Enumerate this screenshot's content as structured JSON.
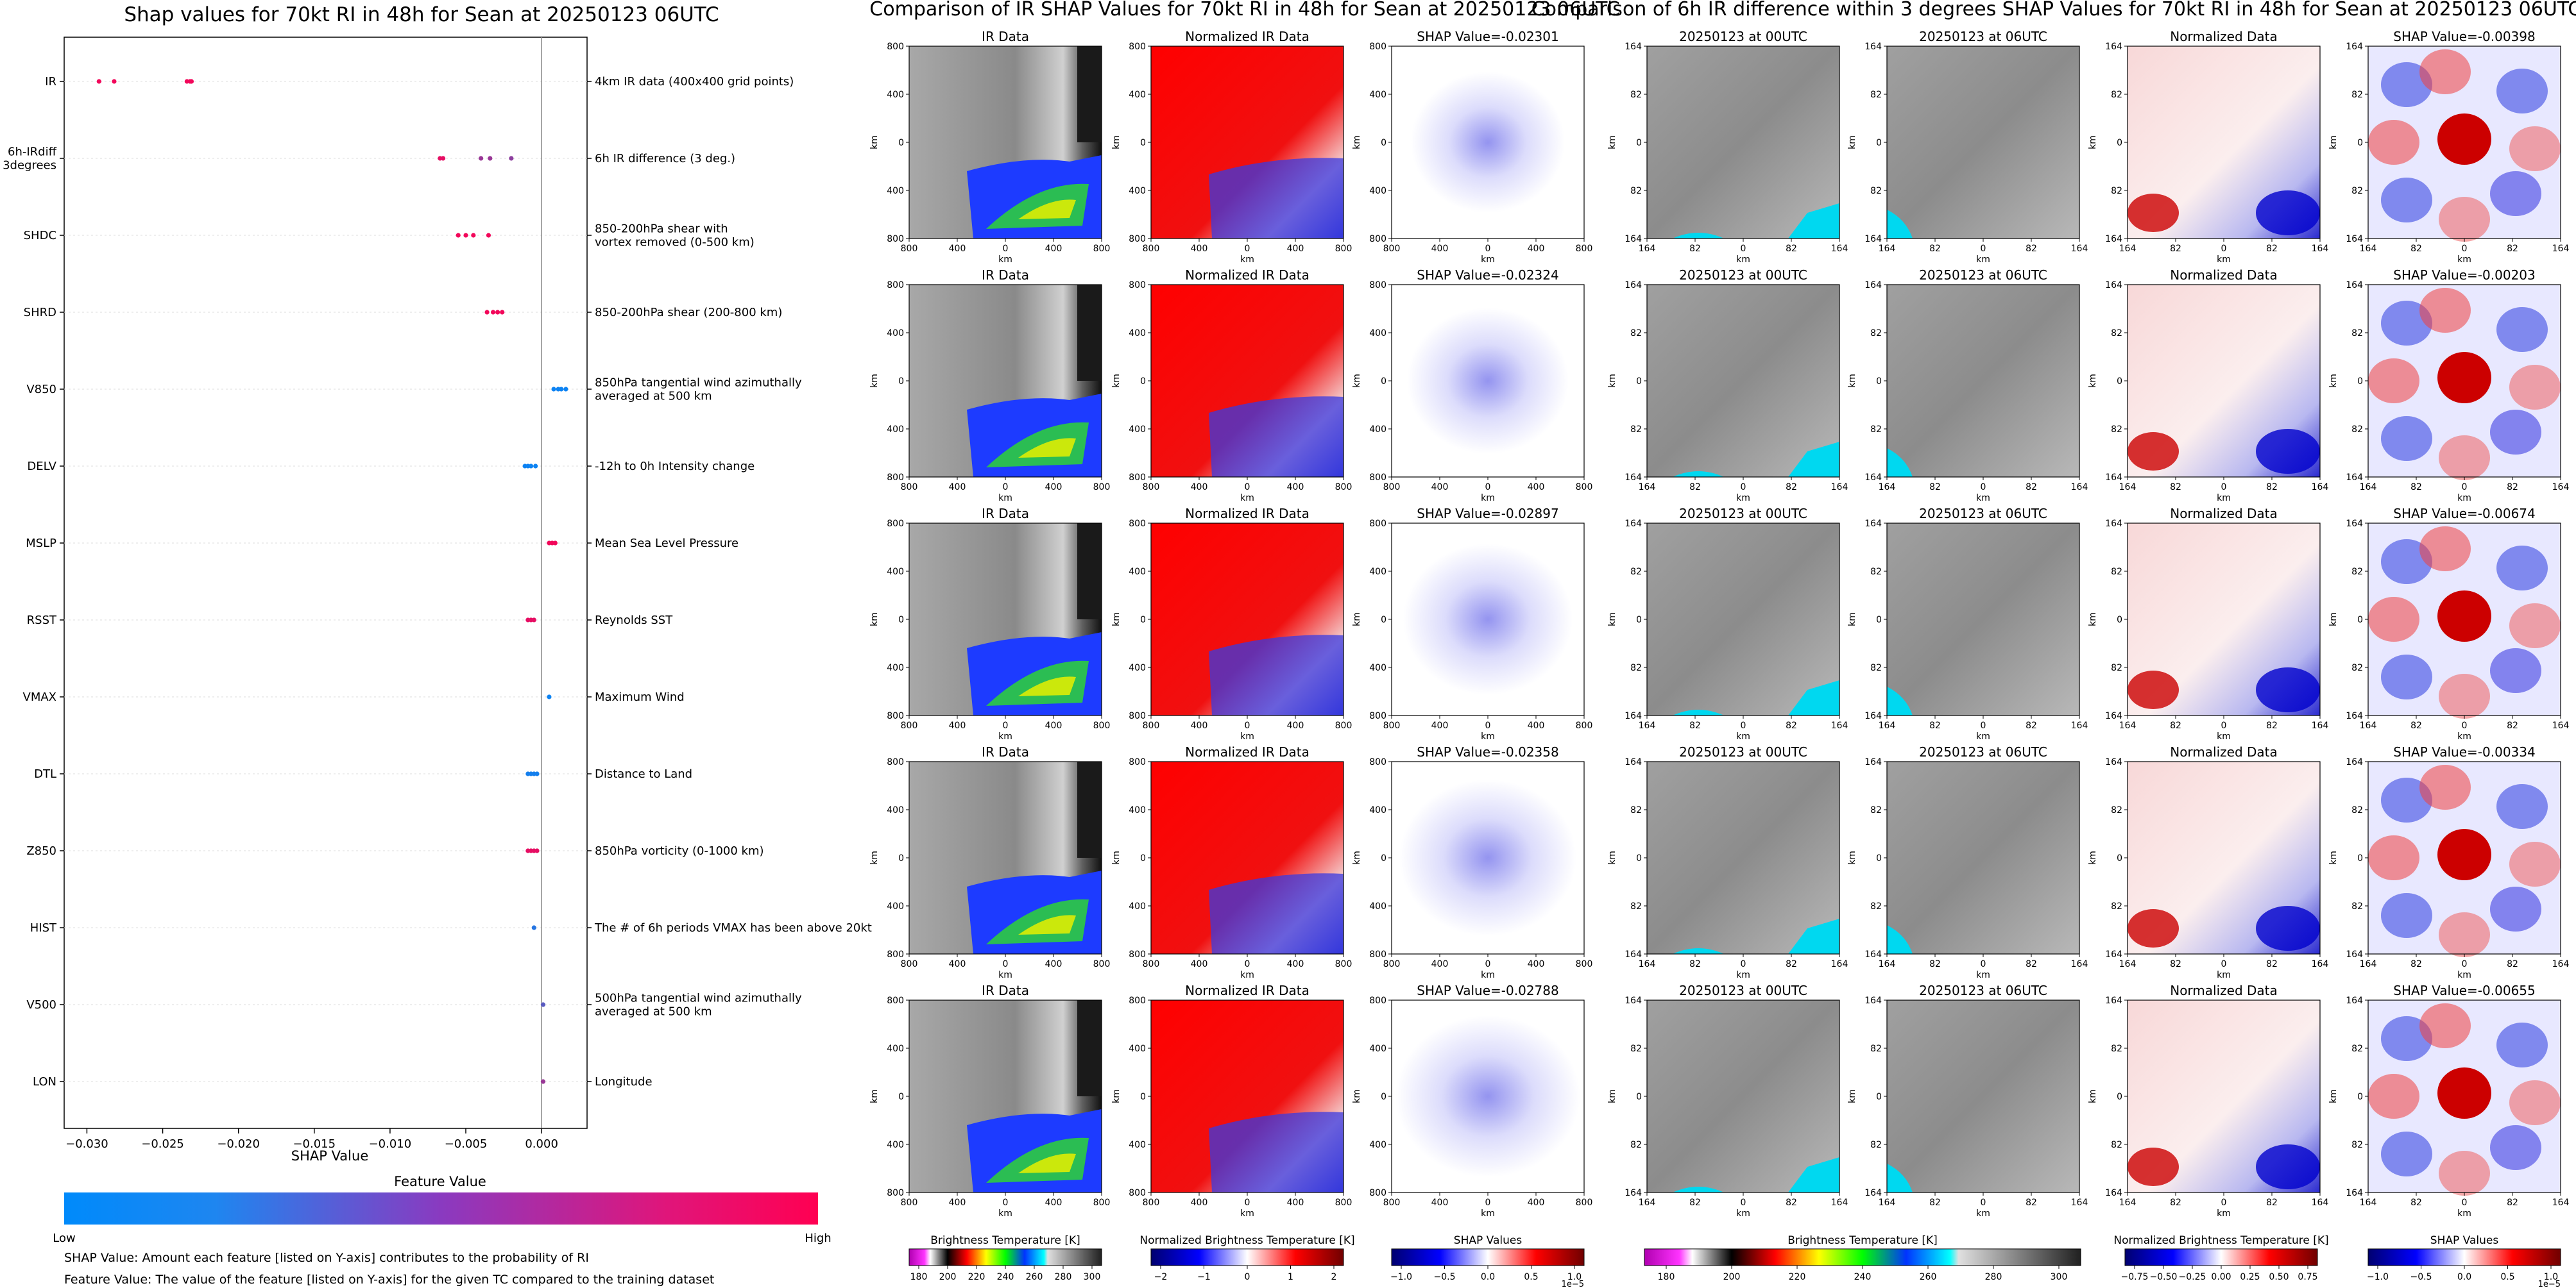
{
  "summary_plot": {
    "title": "Shap values for 70kt RI in 48h for Sean at 20250123 06UTC",
    "xlabel": "SHAP Value",
    "colorbar_title": "Feature Value",
    "colorbar_low": "Low",
    "colorbar_high": "High",
    "footnote_1": "SHAP Value: Amount each feature [listed on Y-axis] contributes to the probability of RI",
    "footnote_2": "Feature Value: The value of the feature [listed on Y-axis] for the given TC compared to the training dataset"
  },
  "ir_section": {
    "title": "Comparison of IR SHAP Values for 70kt RI in 48h for Sean at 20250123 06UTC",
    "col_titles": [
      "IR Data",
      "Normalized IR Data"
    ],
    "shap_titles": [
      "SHAP Value=-0.02301",
      "SHAP Value=-0.02324",
      "SHAP Value=-0.02897",
      "SHAP Value=-0.02358",
      "SHAP Value=-0.02788"
    ],
    "ticks": [
      "800",
      "400",
      "0",
      "400",
      "800"
    ],
    "axis_label": "km",
    "colorbars": [
      {
        "label": "Brightness Temperature [K]",
        "ticks": [
          "180",
          "200",
          "220",
          "240",
          "260",
          "280",
          "300"
        ]
      },
      {
        "label": "Normalized Brightness Temperature [K]",
        "ticks": [
          "−2",
          "−1",
          "0",
          "1",
          "2"
        ]
      },
      {
        "label": "SHAP Values",
        "ticks": [
          "−1.0",
          "−0.5",
          "0.0",
          "0.5",
          "1.0"
        ],
        "offset": "1e−5"
      }
    ]
  },
  "diff_section": {
    "title": "Comparison of 6h IR difference within 3 degrees SHAP Values for 70kt RI in 48h for Sean at 20250123 06UTC",
    "col_titles": [
      "20250123 at 00UTC",
      "20250123 at 06UTC",
      "Normalized Data"
    ],
    "shap_titles": [
      "SHAP Value=-0.00398",
      "SHAP Value=-0.00203",
      "SHAP Value=-0.00674",
      "SHAP Value=-0.00334",
      "SHAP Value=-0.00655"
    ],
    "ticks": [
      "164",
      "82",
      "0",
      "82",
      "164"
    ],
    "axis_label": "km",
    "colorbars": [
      {
        "label": "Brightness Temperature [K]",
        "ticks": [
          "180",
          "200",
          "220",
          "240",
          "260",
          "280",
          "300"
        ]
      },
      {
        "label": "Normalized Brightness Temperature [K]",
        "ticks": [
          "−0.75",
          "−0.50",
          "−0.25",
          "0.00",
          "0.25",
          "0.50",
          "0.75"
        ]
      },
      {
        "label": "SHAP Values",
        "ticks": [
          "−1.0",
          "−0.5",
          "0.0",
          "0.5",
          "1.0"
        ],
        "offset": "1e−5"
      }
    ]
  },
  "chart_data": {
    "type": "scatter",
    "title": "Shap values for 70kt RI in 48h for Sean at 20250123 06UTC",
    "xlabel": "SHAP Value",
    "ylabel": "",
    "xlim": [
      -0.0315,
      0.003
    ],
    "x_ticks": [
      "−0.030",
      "−0.025",
      "−0.020",
      "−0.015",
      "−0.010",
      "−0.005",
      "0.000"
    ],
    "x_tick_values": [
      -0.03,
      -0.025,
      -0.02,
      -0.015,
      -0.01,
      -0.005,
      0.0
    ],
    "features": [
      {
        "code": "IR",
        "description": "4km IR data (400x400 grid points)",
        "shap": [
          -0.0292,
          -0.0282,
          -0.0234,
          -0.0232,
          -0.0231
        ],
        "value": [
          0.95,
          0.95,
          0.95,
          0.95,
          0.95
        ]
      },
      {
        "code": "6h-IRdiff\n3degrees",
        "description": "6h IR difference (3 deg.)",
        "shap": [
          -0.0067,
          -0.0065,
          -0.004,
          -0.0034,
          -0.002
        ],
        "value": [
          0.9,
          0.9,
          0.6,
          0.6,
          0.55
        ]
      },
      {
        "code": "SHDC",
        "description": "850-200hPa shear with\nvortex removed (0-500 km)",
        "shap": [
          -0.0055,
          -0.005,
          -0.0045,
          -0.0035
        ],
        "value": [
          0.95,
          0.95,
          0.95,
          0.95
        ]
      },
      {
        "code": "SHRD",
        "description": "850-200hPa shear (200-800 km)",
        "shap": [
          -0.0036,
          -0.0032,
          -0.0029,
          -0.0026
        ],
        "value": [
          0.95,
          0.95,
          0.95,
          0.95
        ]
      },
      {
        "code": "V850",
        "description": "850hPa tangential wind azimuthally\naveraged at 500 km",
        "shap": [
          0.0008,
          0.0011,
          0.0013,
          0.0016
        ],
        "value": [
          0.05,
          0.05,
          0.05,
          0.05
        ]
      },
      {
        "code": "DELV",
        "description": "-12h to 0h Intensity change",
        "shap": [
          -0.0011,
          -0.0009,
          -0.0007,
          -0.0004
        ],
        "value": [
          0.05,
          0.05,
          0.05,
          0.05
        ]
      },
      {
        "code": "MSLP",
        "description": "Mean Sea Level Pressure",
        "shap": [
          0.0005,
          0.0007,
          0.0009
        ],
        "value": [
          0.95,
          0.95,
          0.95
        ]
      },
      {
        "code": "RSST",
        "description": "Reynolds SST",
        "shap": [
          -0.0009,
          -0.0007,
          -0.0005
        ],
        "value": [
          0.9,
          0.9,
          0.9
        ]
      },
      {
        "code": "VMAX",
        "description": "Maximum Wind",
        "shap": [
          0.0005
        ],
        "value": [
          0.05
        ]
      },
      {
        "code": "DTL",
        "description": "Distance to Land",
        "shap": [
          -0.0009,
          -0.0007,
          -0.0005,
          -0.0003
        ],
        "value": [
          0.08,
          0.08,
          0.08,
          0.08
        ]
      },
      {
        "code": "Z850",
        "description": "850hPa vorticity (0-1000 km)",
        "shap": [
          -0.0009,
          -0.0007,
          -0.0005,
          -0.0003
        ],
        "value": [
          0.9,
          0.9,
          0.9,
          0.9
        ]
      },
      {
        "code": "HIST",
        "description": "The # of 6h periods VMAX has been above 20kt",
        "shap": [
          -0.0005
        ],
        "value": [
          0.15
        ]
      },
      {
        "code": "V500",
        "description": "500hPa tangential wind azimuthally\naveraged at 500 km",
        "shap": [
          0.0001
        ],
        "value": [
          0.35
        ]
      },
      {
        "code": "LON",
        "description": "Longitude",
        "shap": [
          0.0001
        ],
        "value": [
          0.6
        ]
      }
    ]
  }
}
